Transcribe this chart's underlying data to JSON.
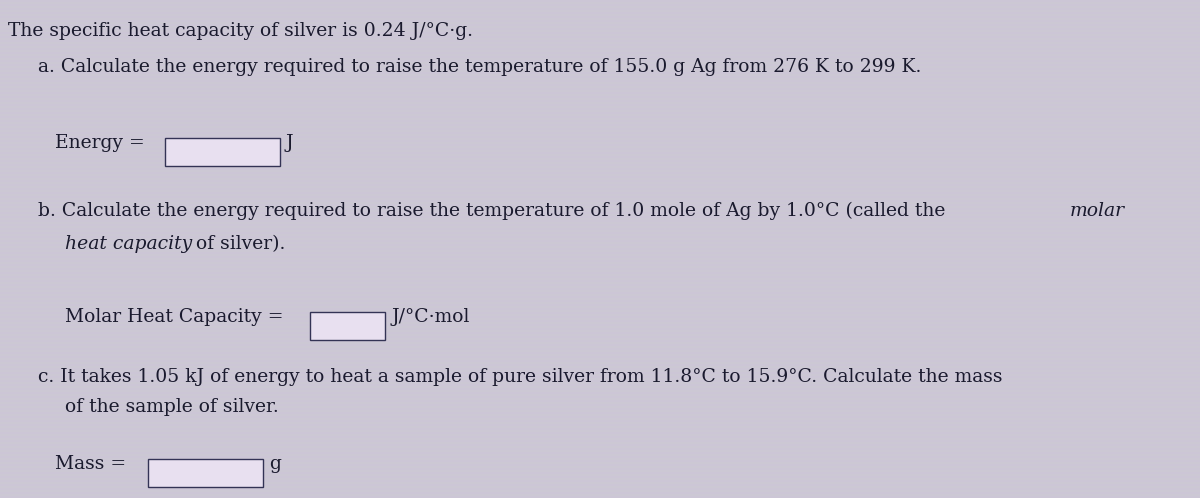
{
  "background_color": "#ccc8d4",
  "stripe_color": "#d8d0e0",
  "title_text": "The specific heat capacity of silver is 0.24 J/°C·g.",
  "title_fontsize": 13.5,
  "part_a_text": "a. Calculate the energy required to raise the temperature of 155.0 g Ag from 276 K to 299 K.",
  "part_a_label": "Energy = ",
  "part_a_unit": "J",
  "part_b_line1_main": "b. Calculate the energy required to raise the temperature of 1.0 mole of Ag by 1.0°C (called the ",
  "part_b_line1_italic": "molar",
  "part_b_line2_italic": "heat capacity",
  "part_b_line2_rest": " of silver).",
  "part_b_label": "Molar Heat Capacity = ",
  "part_b_unit": "J/°C·mol",
  "part_c_line1": "c. It takes 1.05 kJ of energy to heat a sample of pure silver from 11.8°C to 15.9°C. Calculate the mass",
  "part_c_line2": "of the sample of silver.",
  "part_c_label": "Mass = ",
  "part_c_unit": "g",
  "text_color": "#1a1a2e",
  "box_facecolor": "#e8e0f0",
  "box_edgecolor": "#333355",
  "font_size_title": 13.5,
  "font_size_body": 13.5,
  "font_size_label": 13.5
}
